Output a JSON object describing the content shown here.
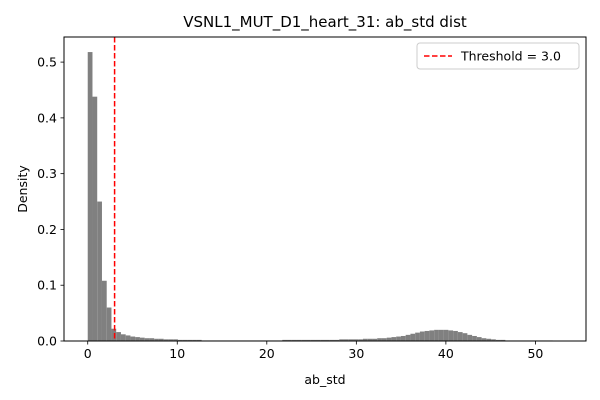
{
  "chart_data": {
    "type": "bar",
    "title": "VSNL1_MUT_D1_heart_31: ab_std dist",
    "xlabel": "ab_std",
    "ylabel": "Density",
    "xlim": [
      -2.65,
      55.65
    ],
    "ylim": [
      0,
      0.545
    ],
    "x_ticks": [
      0,
      10,
      20,
      30,
      40,
      50
    ],
    "x_tick_labels": [
      "0",
      "10",
      "20",
      "30",
      "40",
      "50"
    ],
    "y_ticks": [
      0.0,
      0.1,
      0.2,
      0.3,
      0.4,
      0.5
    ],
    "y_tick_labels": [
      "0.0",
      "0.1",
      "0.2",
      "0.3",
      "0.4",
      "0.5"
    ],
    "grid": false,
    "legend_position": "top-right",
    "bar_color": "#808080",
    "threshold": {
      "value": 3.0,
      "label": "Threshold = 3.0",
      "color": "#ff0000",
      "style": "dashed"
    },
    "histogram": {
      "bin_start": 0,
      "bin_width": 0.53,
      "densities": [
        0.518,
        0.438,
        0.25,
        0.108,
        0.06,
        0.022,
        0.016,
        0.012,
        0.01,
        0.008,
        0.007,
        0.006,
        0.005,
        0.005,
        0.004,
        0.004,
        0.003,
        0.003,
        0.003,
        0.002,
        0.002,
        0.002,
        0.002,
        0.002,
        0.001,
        0.001,
        0.001,
        0.001,
        0.001,
        0.001,
        0.001,
        0.001,
        0.001,
        0.001,
        0.001,
        0.001,
        0.001,
        0.001,
        0.001,
        0.001,
        0.001,
        0.002,
        0.002,
        0.002,
        0.002,
        0.002,
        0.002,
        0.002,
        0.002,
        0.002,
        0.002,
        0.002,
        0.002,
        0.003,
        0.003,
        0.003,
        0.003,
        0.003,
        0.004,
        0.004,
        0.004,
        0.005,
        0.005,
        0.006,
        0.007,
        0.008,
        0.009,
        0.011,
        0.013,
        0.015,
        0.017,
        0.018,
        0.019,
        0.02,
        0.02,
        0.02,
        0.019,
        0.018,
        0.016,
        0.014,
        0.011,
        0.009,
        0.007,
        0.005,
        0.004,
        0.003,
        0.002,
        0.002,
        0.001,
        0.001,
        0.001,
        0.001,
        0.001,
        0.001,
        0.001,
        0.001,
        0.001,
        0.001,
        0.0005,
        0.0005
      ]
    }
  }
}
